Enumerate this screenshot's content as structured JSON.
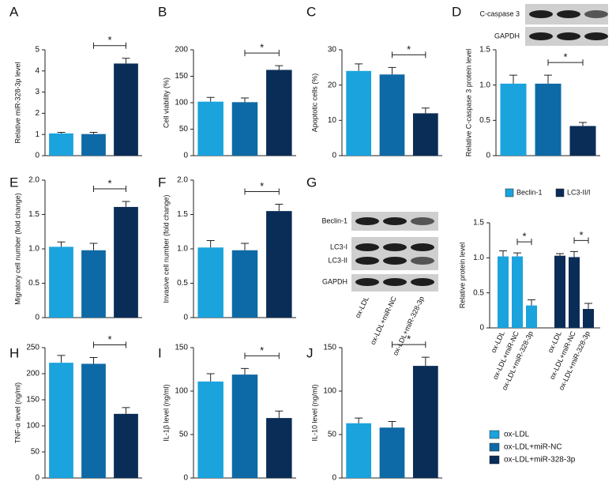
{
  "legend": {
    "items": [
      {
        "name": "ox-LDL",
        "color": "#1aa3dd"
      },
      {
        "name": "ox-LDL+miR-NC",
        "color": "#0e6aa6"
      },
      {
        "name": "ox-LDL+miR-328-3p",
        "color": "#0a2d57"
      }
    ]
  },
  "chart_data": [
    {
      "type": "bar",
      "panel": "A",
      "ylabel": "Relative miR-328-3p level",
      "values": [
        1.05,
        1.02,
        4.35
      ],
      "errors": [
        0.05,
        0.08,
        0.25
      ],
      "ylim": [
        0,
        5
      ],
      "yticks": [
        0,
        1,
        2,
        3,
        4,
        5
      ],
      "annotations": [
        "*"
      ]
    },
    {
      "type": "bar",
      "panel": "B",
      "ylabel": "Cell viability (%)",
      "values": [
        102,
        101,
        162
      ],
      "errors": [
        8,
        8,
        8
      ],
      "ylim": [
        0,
        200
      ],
      "yticks": [
        0,
        50,
        100,
        150,
        200
      ],
      "annotations": [
        "*"
      ]
    },
    {
      "type": "bar",
      "panel": "C",
      "ylabel": "Apoptotic cells (%)",
      "values": [
        24,
        23,
        12
      ],
      "errors": [
        2,
        2,
        1.5
      ],
      "ylim": [
        0,
        30
      ],
      "yticks": [
        0,
        10,
        20,
        30
      ],
      "annotations": [
        "*"
      ]
    },
    {
      "type": "bar",
      "panel": "D",
      "ylabel": "Relative C-caspase 3 protein level",
      "values": [
        1.02,
        1.02,
        0.42
      ],
      "errors": [
        0.12,
        0.12,
        0.05
      ],
      "ylim": [
        0,
        1.5
      ],
      "yticks": [
        0,
        0.5,
        {
          "value": 1,
          "label": "1.0"
        },
        1.5
      ],
      "annotations": [
        "*"
      ],
      "blot_labels": [
        "C-caspase 3",
        "GAPDH"
      ]
    },
    {
      "type": "bar",
      "panel": "E",
      "ylabel": "Migratory cell number (fold change)",
      "values": [
        1.03,
        0.98,
        1.61
      ],
      "errors": [
        0.07,
        0.1,
        0.08
      ],
      "ylim": [
        0,
        2
      ],
      "yticks": [
        0,
        0.5,
        {
          "value": 1,
          "label": "1.0"
        },
        1.5,
        {
          "value": 2,
          "label": "2.0"
        }
      ],
      "annotations": [
        "*"
      ]
    },
    {
      "type": "bar",
      "panel": "F",
      "ylabel": "Invasive cell number (fold change)",
      "values": [
        1.02,
        0.98,
        1.55
      ],
      "errors": [
        0.1,
        0.1,
        0.1
      ],
      "ylim": [
        0,
        2
      ],
      "yticks": [
        0,
        0.5,
        {
          "value": 1,
          "label": "1.0"
        },
        1.5,
        {
          "value": 2,
          "label": "2.0"
        }
      ],
      "annotations": [
        "*"
      ]
    },
    {
      "type": "grouped_bar",
      "panel": "G",
      "ylabel": "Relative protein level",
      "categories": [
        "ox-LDL",
        "ox-LDL+miR-NC",
        "ox-LDL+miR-328-3p"
      ],
      "series": [
        {
          "name": "Beclin-1",
          "color": "#1aa3dd",
          "values": [
            1.02,
            1.02,
            0.32
          ],
          "errors": [
            0.08,
            0.05,
            0.08
          ]
        },
        {
          "name": "LC3-II/I",
          "color": "#0a2d57",
          "values": [
            1.03,
            1.01,
            0.27
          ],
          "errors": [
            0.03,
            0.08,
            0.08
          ]
        }
      ],
      "ylim": [
        0,
        1.5
      ],
      "yticks": [
        0,
        0.5,
        {
          "value": 1,
          "label": "1.0"
        },
        1.5
      ],
      "annotations": [
        "*",
        "*"
      ],
      "blot_labels": [
        "Beclin-1",
        "LC3-I",
        "LC3-II",
        "GAPDH"
      ]
    },
    {
      "type": "bar",
      "panel": "H",
      "ylabel": "TNF-α level (ng/ml)",
      "values": [
        221,
        219,
        123
      ],
      "errors": [
        14,
        12,
        12
      ],
      "ylim": [
        0,
        250
      ],
      "yticks": [
        0,
        50,
        100,
        150,
        200,
        250
      ],
      "annotations": [
        "*"
      ]
    },
    {
      "type": "bar",
      "panel": "I",
      "ylabel": "IL-1β level (ng/ml)",
      "values": [
        111,
        119,
        69
      ],
      "errors": [
        9,
        7,
        8
      ],
      "ylim": [
        0,
        150
      ],
      "yticks": [
        0,
        50,
        100,
        150
      ],
      "annotations": [
        "*"
      ]
    },
    {
      "type": "bar",
      "panel": "J",
      "ylabel": "IL-10 level (ng/ml)",
      "values": [
        63,
        58,
        129
      ],
      "errors": [
        6,
        7,
        10
      ],
      "ylim": [
        0,
        150
      ],
      "yticks": [
        0,
        50,
        100,
        150
      ],
      "annotations": [
        "*"
      ]
    }
  ]
}
